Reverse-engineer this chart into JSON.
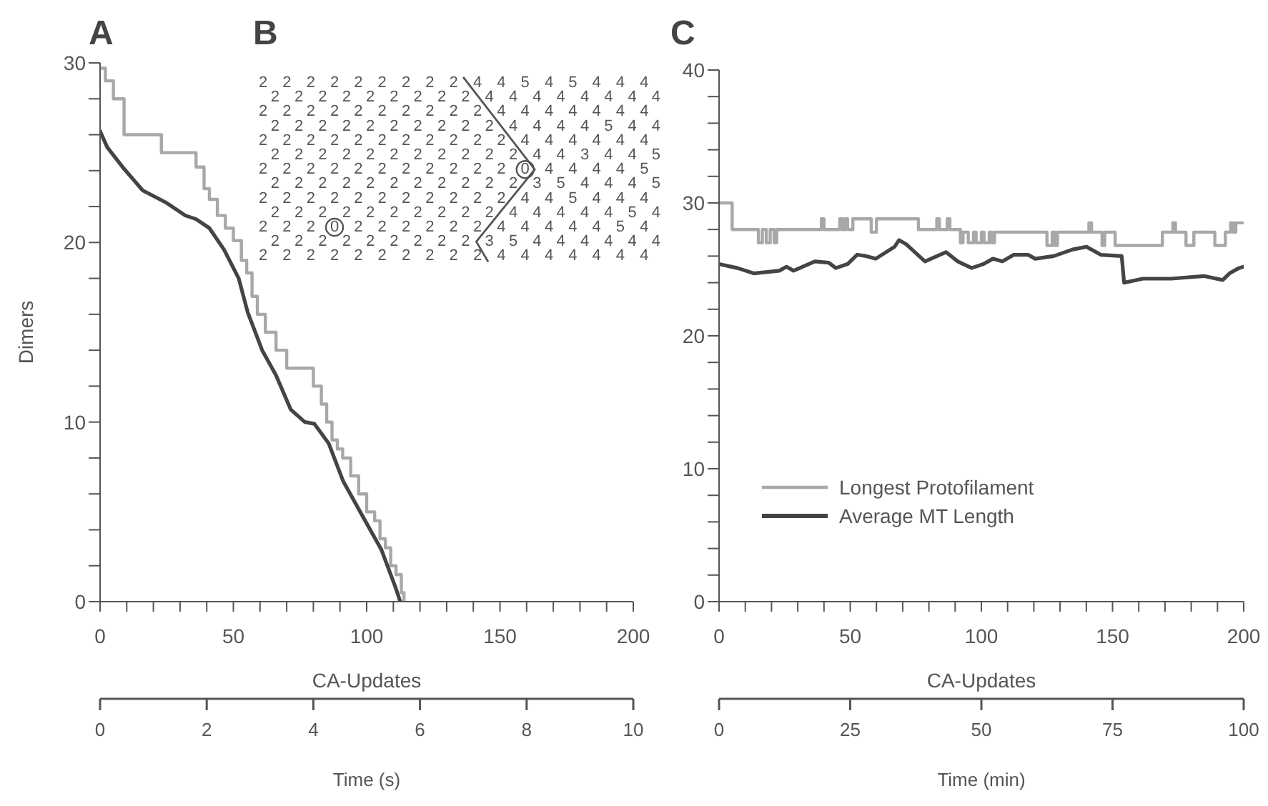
{
  "chart_data": [
    {
      "type": "line",
      "title": "A",
      "xlabel": "CA-Updates",
      "ylabel": "Dimers",
      "x2label": "Time (s)",
      "xlim": [
        0,
        200
      ],
      "xticks": [
        0,
        {
          "value": 10,
          "label": null
        },
        {
          "value": 20,
          "label": null
        },
        {
          "value": 30,
          "label": null
        },
        {
          "value": 40,
          "label": null
        },
        50,
        {
          "value": 60,
          "label": null
        },
        {
          "value": 70,
          "label": null
        },
        {
          "value": 80,
          "label": null
        },
        {
          "value": 90,
          "label": null
        },
        100,
        {
          "value": 110,
          "label": null
        },
        {
          "value": 120,
          "label": null
        },
        {
          "value": 130,
          "label": null
        },
        {
          "value": 140,
          "label": null
        },
        150,
        {
          "value": 160,
          "label": null
        },
        {
          "value": 170,
          "label": null
        },
        {
          "value": 180,
          "label": null
        },
        {
          "value": 190,
          "label": null
        },
        200
      ],
      "x2lim": [
        0,
        10
      ],
      "x2ticks": [
        0,
        2,
        4,
        6,
        8,
        10
      ],
      "ylim": [
        0,
        30
      ],
      "yticks": [
        0,
        {
          "value": 2,
          "label": null
        },
        {
          "value": 4,
          "label": null
        },
        {
          "value": 6,
          "label": null
        },
        {
          "value": 8,
          "label": null
        },
        10,
        {
          "value": 12,
          "label": null
        },
        {
          "value": 14,
          "label": null
        },
        {
          "value": 16,
          "label": null
        },
        {
          "value": 18,
          "label": null
        },
        20,
        {
          "value": 22,
          "label": null
        },
        {
          "value": 24,
          "label": null
        },
        {
          "value": 26,
          "label": null
        },
        {
          "value": 28,
          "label": null
        },
        30
      ],
      "series": [
        {
          "type": "step",
          "color": "#a8a8a8",
          "x": [
            0,
            2,
            5,
            9,
            23,
            36,
            39,
            41,
            44,
            47,
            50,
            53,
            55,
            57,
            59,
            62,
            66,
            70,
            80,
            83,
            85,
            87,
            89,
            91,
            94,
            97,
            100,
            103,
            105,
            107,
            109,
            111,
            113,
            114
          ],
          "values": [
            29.7,
            29,
            28,
            26,
            25,
            24.2,
            23,
            22.4,
            21.5,
            20.8,
            20.1,
            19,
            18.3,
            17,
            16,
            15,
            14,
            13,
            12,
            11,
            10,
            9,
            8.5,
            8,
            7,
            6,
            5,
            4.5,
            3.5,
            3,
            2,
            1.5,
            0.5,
            0
          ]
        },
        {
          "type": "line",
          "color": "#444444",
          "x": [
            0,
            2.7,
            9,
            16,
            25,
            32,
            36,
            41,
            46.5,
            52,
            55.4,
            60.8,
            66,
            71.5,
            76.8,
            80.4,
            85.8,
            91.2,
            98.3,
            105.5,
            110.8,
            112.6
          ],
          "values": [
            26.2,
            25.3,
            24.1,
            22.9,
            22.2,
            21.5,
            21.3,
            20.8,
            19.6,
            18,
            16.1,
            14,
            12.6,
            10.7,
            10,
            9.9,
            8.8,
            6.7,
            4.8,
            2.9,
            0.8,
            0
          ]
        }
      ]
    },
    {
      "type": "other",
      "title": "B",
      "annotations": [
        "2 2 2 2 2 2 2 2 2 4 4 5 4 5 4 4 4",
        "2 2 2 2 2 2 2 2 2 4 4 4 4 4 4 4 4",
        "2 2 2 2 2 2 2 2 2 2 4 4 4 4 4 4 4",
        "2 2 2 2 2 2 2 2 2 2 4 4 4 4 5 4 4",
        "2 2 2 2 2 2 2 2 2 2 2 4 4 4 4 4 4",
        "2 2 2 2 2 2 2 2 2 2 2 4 4 3 4 4 5",
        "2 2 2 2 2 2 2 2 2 2 2 0 4 4 4 4 5",
        "2 2 2 2 2 2 2 2 2 2 2 3 5 4 4 4 5",
        "2 2 2 2 2 2 2 2 2 2 2 4 4 5 4 4 4",
        "2 2 2 2 2 2 2 2 2 2 4 4 4 4 4 5 4",
        "2 2 2 0 2 2 2 2 2 2 4 4 4 4 4 5 4",
        "2 2 2 2 2 2 2 2 2 3 5 4 4 4 4 4 4",
        "2 2 2 2 2 2 2 2 2 2 4 4 4 4 4 4 4"
      ]
    },
    {
      "type": "line",
      "title": "C",
      "xlabel": "CA-Updates",
      "x2label": "Time (min)",
      "legend": "bottom left",
      "xlim": [
        0,
        200
      ],
      "xticks": [
        0,
        {
          "value": 10,
          "label": null
        },
        {
          "value": 20,
          "label": null
        },
        {
          "value": 30,
          "label": null
        },
        {
          "value": 40,
          "label": null
        },
        50,
        {
          "value": 60,
          "label": null
        },
        {
          "value": 70,
          "label": null
        },
        {
          "value": 80,
          "label": null
        },
        {
          "value": 90,
          "label": null
        },
        100,
        {
          "value": 110,
          "label": null
        },
        {
          "value": 120,
          "label": null
        },
        {
          "value": 130,
          "label": null
        },
        {
          "value": 140,
          "label": null
        },
        150,
        {
          "value": 160,
          "label": null
        },
        {
          "value": 170,
          "label": null
        },
        {
          "value": 180,
          "label": null
        },
        {
          "value": 190,
          "label": null
        },
        200
      ],
      "x2lim": [
        0,
        100
      ],
      "x2ticks": [
        0,
        25,
        50,
        75,
        100
      ],
      "ylim": [
        0,
        40
      ],
      "yticks": [
        0,
        {
          "value": 2,
          "label": null
        },
        {
          "value": 4,
          "label": null
        },
        {
          "value": 6,
          "label": null
        },
        {
          "value": 8,
          "label": null
        },
        10,
        {
          "value": 12,
          "label": null
        },
        {
          "value": 14,
          "label": null
        },
        {
          "value": 16,
          "label": null
        },
        {
          "value": 18,
          "label": null
        },
        20,
        {
          "value": 22,
          "label": null
        },
        {
          "value": 24,
          "label": null
        },
        {
          "value": 26,
          "label": null
        },
        {
          "value": 28,
          "label": null
        },
        30,
        {
          "value": 32,
          "label": null
        },
        {
          "value": 34,
          "label": null
        },
        {
          "value": 36,
          "label": null
        },
        {
          "value": 38,
          "label": null
        },
        40
      ],
      "series": [
        {
          "type": "step",
          "name": "Longest Protofilament",
          "color": "#a8a8a8",
          "x": [
            0,
            5,
            14,
            15,
            16.5,
            18,
            19.5,
            21,
            22,
            38,
            39,
            40,
            45,
            46,
            47,
            48,
            49,
            51,
            57,
            58,
            60,
            75,
            76,
            82,
            83,
            84,
            86,
            87,
            88,
            90,
            92,
            93,
            95,
            97,
            98,
            100,
            101,
            103,
            104,
            105,
            124,
            125,
            127,
            128,
            129,
            140,
            141,
            142,
            145,
            146,
            147,
            150,
            151,
            168,
            169,
            172,
            173,
            174,
            177,
            178,
            180,
            181,
            188,
            189,
            190,
            193,
            195,
            196,
            197,
            200
          ],
          "values": [
            30,
            28,
            28,
            27,
            28,
            27,
            28,
            27,
            28,
            28,
            28.8,
            28,
            28,
            28.8,
            28,
            28.8,
            28,
            28.8,
            28.8,
            27.8,
            28.8,
            28.8,
            28,
            28,
            28.8,
            28,
            28,
            28.8,
            28,
            28,
            27,
            27.8,
            27,
            27.8,
            27,
            27.8,
            27,
            27.8,
            27,
            27.8,
            27.8,
            26.8,
            27.8,
            26.8,
            27.8,
            27.8,
            28.5,
            27.8,
            27.8,
            26.8,
            27.8,
            27.8,
            26.8,
            26.8,
            27.8,
            27.8,
            28.5,
            27.8,
            27.8,
            26.8,
            26.8,
            27.8,
            27.8,
            26.8,
            26.8,
            27.8,
            28.5,
            27.8,
            28.5,
            28.5
          ]
        },
        {
          "type": "line",
          "name": "Average MT Length",
          "color": "#444444",
          "x": [
            0,
            7,
            13.2,
            23,
            25.7,
            28.4,
            36.5,
            41.8,
            44.5,
            49,
            52.6,
            56.1,
            59.7,
            66.9,
            68.6,
            71.3,
            78.5,
            86.5,
            91,
            96.3,
            100.8,
            104.4,
            108,
            112.4,
            117.8,
            120.5,
            127.6,
            134.8,
            140.1,
            145.5,
            153.5,
            154.4,
            161.6,
            172.3,
            184.8,
            192,
            194.6,
            198.2,
            200
          ],
          "values": [
            25.4,
            25.1,
            24.7,
            24.9,
            25.2,
            24.9,
            25.6,
            25.5,
            25.1,
            25.4,
            26.1,
            26,
            25.8,
            26.7,
            27.2,
            26.9,
            25.6,
            26.3,
            25.6,
            25.1,
            25.4,
            25.8,
            25.6,
            26.1,
            26.1,
            25.8,
            26,
            26.5,
            26.7,
            26.1,
            26,
            24,
            24.3,
            24.3,
            24.5,
            24.2,
            24.7,
            25.1,
            25.2
          ]
        }
      ]
    }
  ]
}
